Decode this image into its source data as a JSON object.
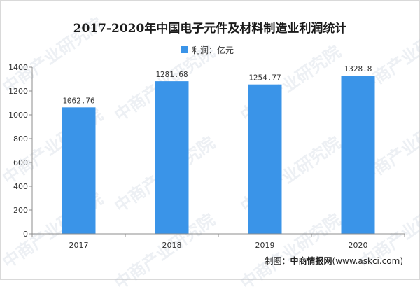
{
  "chart_data": {
    "type": "bar",
    "title": "2017-2020年中国电子元件及材料制造业利润统计",
    "categories": [
      "2017",
      "2018",
      "2019",
      "2020"
    ],
    "series": [
      {
        "name": "利润：亿元",
        "values": [
          1062.76,
          1281.68,
          1254.77,
          1328.8
        ]
      }
    ],
    "data_labels": [
      "1062.76",
      "1281.68",
      "1254.77",
      "1328.8"
    ],
    "y_ticks": [
      0,
      200,
      400,
      600,
      800,
      1000,
      1200,
      1400
    ],
    "ylim": [
      0,
      1400
    ],
    "xlabel": "",
    "ylabel": "",
    "grid": false,
    "legend_position": "top-center",
    "bar_color": "#3a94e8"
  },
  "watermark": "中商产业研究院",
  "footer": {
    "prefix": "制图：",
    "source": "中商情报网",
    "url": "(www.askci.com)"
  }
}
